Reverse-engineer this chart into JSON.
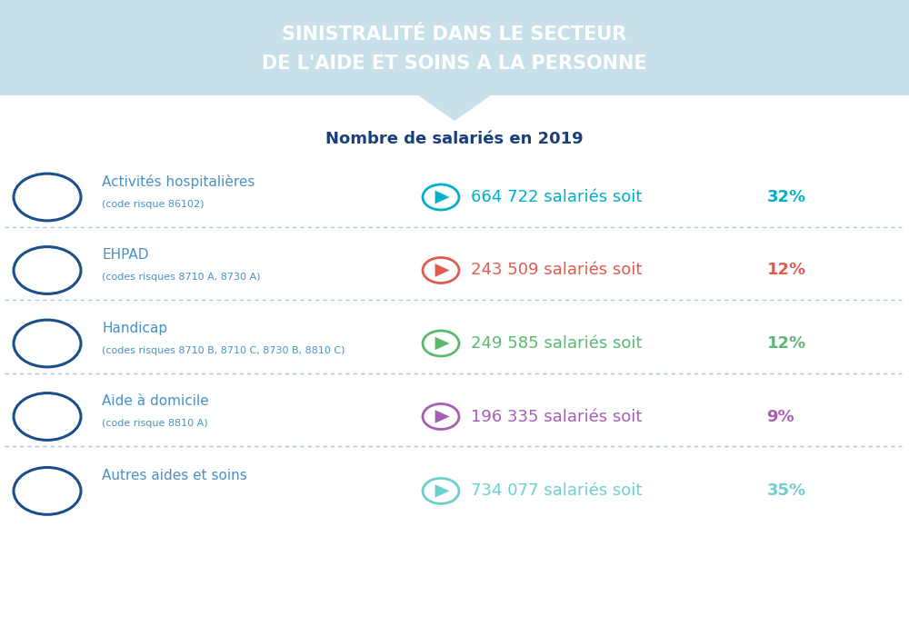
{
  "title_line1": "SINISTRALITÉ DANS LE SECTEUR",
  "title_line2": "DE L'AIDE ET SOINS A LA PERSONNE",
  "subtitle": "Nombre de salariés en 2019",
  "header_bg": "#c8e0ea",
  "bg_color": "#ffffff",
  "icon_color": "#1a4f8a",
  "label_color": "#4a90c4",
  "sublabel_color": "#4a90c4",
  "dotted_line_color": "#a0cce0",
  "rows": [
    {
      "label": "Activités hospitalières",
      "sublabel": "(code risque 86102)",
      "value": "664 722 salariés soit ",
      "pct": "32%",
      "color": "#00b0ca"
    },
    {
      "label": "EHPAD",
      "sublabel": "(codes risques 8710 A, 8730 A)",
      "value": "243 509 salariés soit ",
      "pct": "12%",
      "color": "#e05a4e"
    },
    {
      "label": "Handicap",
      "sublabel": "(codes risques 8710 B, 8710 C, 8730 B, 8810 C)",
      "value": "249 585 salariés soit ",
      "pct": "12%",
      "color": "#5ab96e"
    },
    {
      "label": "Aide à domicile",
      "sublabel": "(code risque 8810 A)",
      "value": "196 335 salariés soit ",
      "pct": "9%",
      "color": "#a55db5"
    },
    {
      "label": "Autres aides et soins",
      "sublabel": "",
      "value": "734 077 salariés soit ",
      "pct": "35%",
      "color": "#6ecfcf"
    }
  ]
}
